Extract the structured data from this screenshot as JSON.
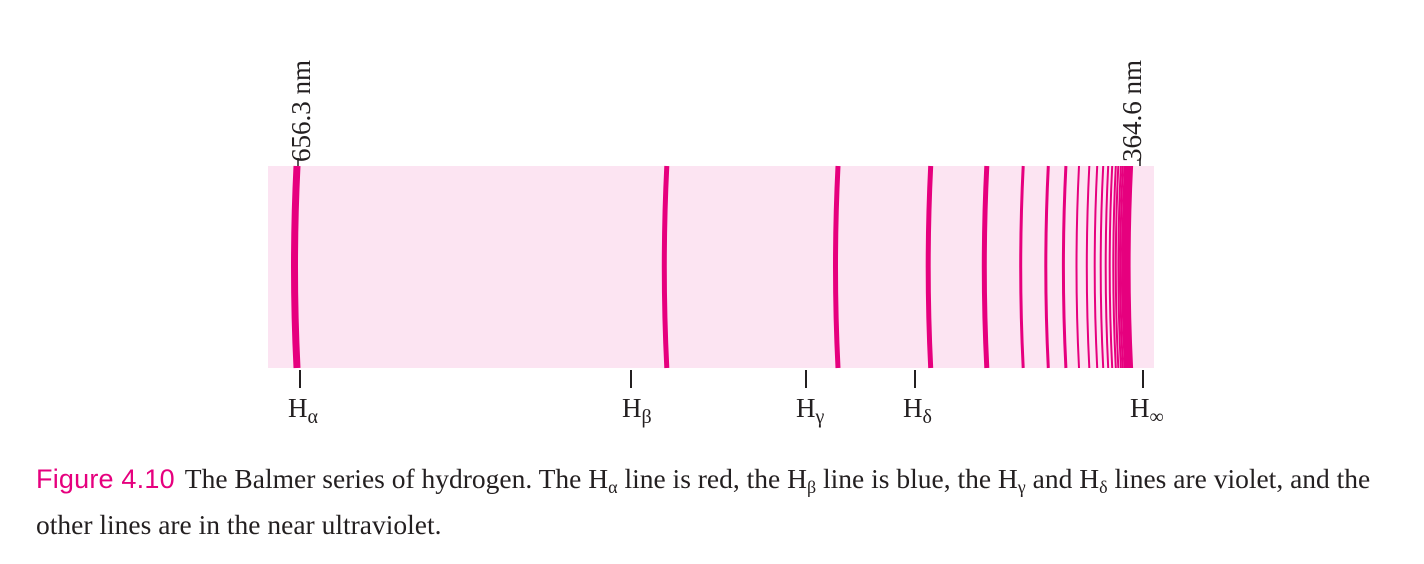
{
  "diagram": {
    "colors": {
      "band": "#fce4f2",
      "line": "#e6007e",
      "text": "#231f20",
      "figure_number": "#e6007e"
    },
    "axis_labels": {
      "long_end": "656.3 nm",
      "short_end": "364.6 nm"
    },
    "series_limit_nm": 364.6,
    "spectral_lines_nm": [
      656.3,
      486.1,
      434.0,
      410.2,
      397.0,
      388.9,
      383.5,
      379.8,
      377.1,
      375.0,
      373.4,
      372.2,
      371.2,
      370.4,
      369.7,
      369.2,
      368.7,
      368.3,
      367.9,
      367.6,
      367.4,
      367.1,
      366.9,
      366.7,
      366.5
    ],
    "line_labels": [
      {
        "base": "H",
        "sub": "α"
      },
      {
        "base": "H",
        "sub": "β"
      },
      {
        "base": "H",
        "sub": "γ"
      },
      {
        "base": "H",
        "sub": "δ"
      },
      {
        "base": "H",
        "sub": "∞"
      }
    ]
  },
  "caption": {
    "figure_number": "Figure 4.10",
    "text_1": "The Balmer series of hydrogen. The H",
    "sub_1": "α",
    "text_2": " line is red, the H",
    "sub_2": "β",
    "text_3": " line is blue, the H",
    "sub_3": "γ",
    "text_4": " and H",
    "sub_4": "δ",
    "text_5": " lines are violet, and the other lines are in the near ultraviolet."
  }
}
